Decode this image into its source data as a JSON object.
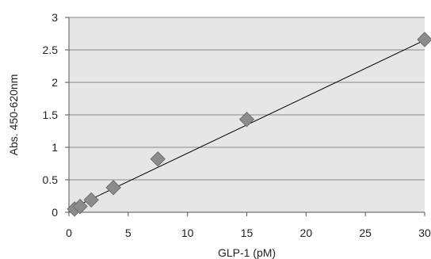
{
  "chart_data": {
    "type": "scatter",
    "title": "",
    "xlabel": "GLP-1 (pM)",
    "ylabel": "Abs. 450-620nm",
    "xlim": [
      0,
      30
    ],
    "ylim": [
      0,
      3
    ],
    "x_ticks": [
      0,
      5,
      10,
      15,
      20,
      25,
      30
    ],
    "x_tick_labels": [
      "0",
      "5",
      "10",
      "15",
      "20",
      "25",
      "30"
    ],
    "y_ticks": [
      0,
      0.5,
      1,
      1.5,
      2,
      2.5,
      3
    ],
    "y_tick_labels": [
      "0",
      "0.5",
      "1",
      "1.5",
      "2",
      "2.5",
      "3"
    ],
    "grid": "horizontal",
    "legend": "none",
    "series": [
      {
        "marker": "diamond",
        "x": [
          0.47,
          0.94,
          1.88,
          3.75,
          7.5,
          15,
          30
        ],
        "y": [
          0.05,
          0.09,
          0.19,
          0.38,
          0.82,
          1.43,
          2.66
        ]
      }
    ],
    "trendline": {
      "type": "linear",
      "x": [
        0.47,
        30
      ],
      "y": [
        0.08,
        2.65
      ]
    },
    "colors": {
      "plot_background": "#e6e6e6",
      "gridline": "#8a8a8a",
      "marker_fill": "#8c8c8c",
      "marker_stroke": "#6f6f6f",
      "trendline": "#000000",
      "axis": "#555555"
    }
  }
}
